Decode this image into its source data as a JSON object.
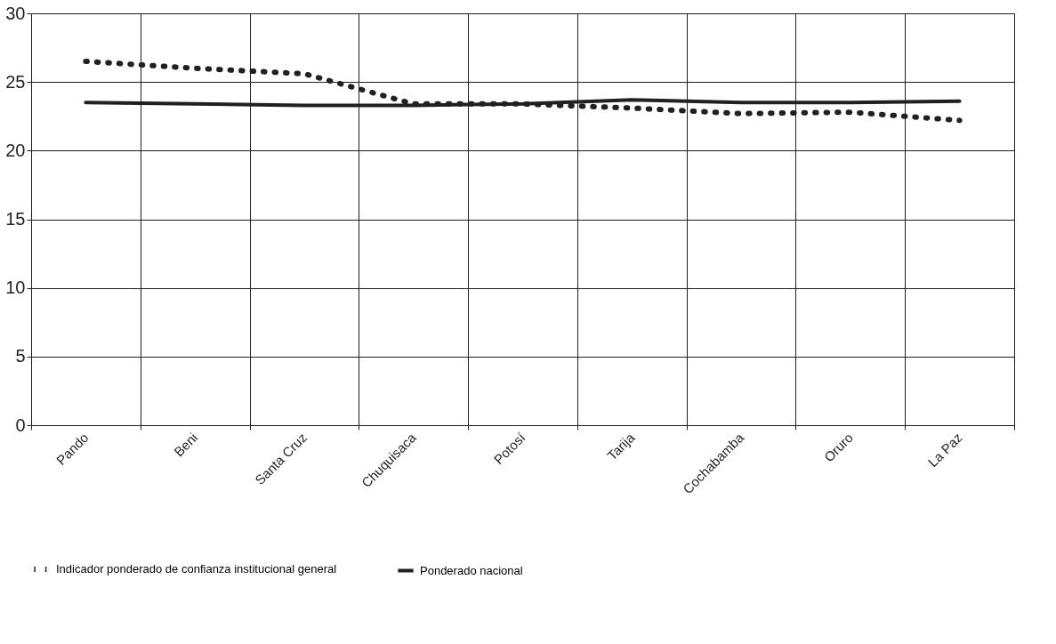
{
  "chart_data": {
    "type": "line",
    "categories": [
      "Pando",
      "Beni",
      "Santa Cruz",
      "Chuquisaca",
      "Potosí",
      "Tarija",
      "Cochabamba",
      "Oruro",
      "La Paz"
    ],
    "series": [
      {
        "name": "Indicador ponderado de confianza institucional general",
        "color": "#231f20",
        "line_style": "dotted",
        "values": [
          26.5,
          26.0,
          25.6,
          23.4,
          23.4,
          23.1,
          22.7,
          22.8,
          22.2
        ]
      },
      {
        "name": "Ponderado nacional",
        "color": "#231f20",
        "line_style": "solid",
        "values": [
          23.5,
          23.4,
          23.3,
          23.3,
          23.4,
          23.7,
          23.5,
          23.5,
          23.6
        ]
      }
    ],
    "ylim": [
      0,
      30
    ],
    "yticks": [
      0,
      5,
      10,
      15,
      20,
      25,
      30
    ],
    "grid": true,
    "legend": "bottom"
  }
}
